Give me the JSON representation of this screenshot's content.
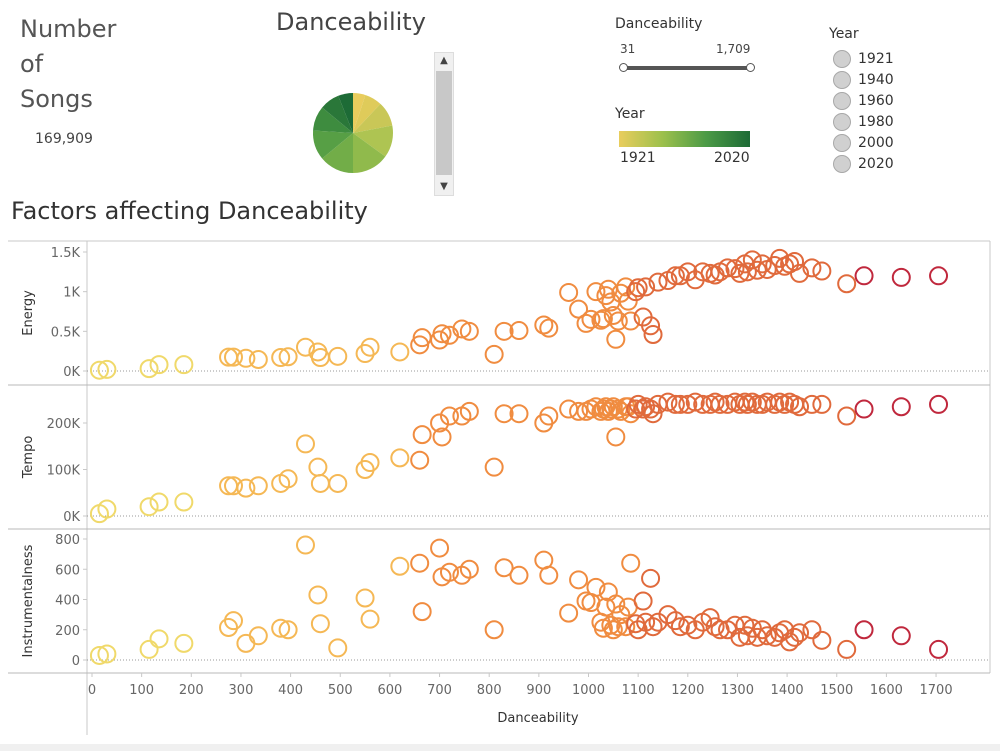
{
  "kpi": {
    "title": "Number of Songs",
    "value": "169,909"
  },
  "pie": {
    "title": "Danceability",
    "slices": [
      {
        "share": 0.05,
        "color": "#e9cd5d"
      },
      {
        "share": 0.07,
        "color": "#dfcb5a"
      },
      {
        "share": 0.1,
        "color": "#c9c757"
      },
      {
        "share": 0.13,
        "color": "#aec452"
      },
      {
        "share": 0.15,
        "color": "#90ba4c"
      },
      {
        "share": 0.14,
        "color": "#72ad48"
      },
      {
        "share": 0.12,
        "color": "#579f45"
      },
      {
        "share": 0.1,
        "color": "#3e8c3f"
      },
      {
        "share": 0.08,
        "color": "#2a7739"
      },
      {
        "share": 0.06,
        "color": "#1d6b36"
      }
    ]
  },
  "filters": {
    "danceability": {
      "label": "Danceability",
      "min": "31",
      "max": "1,709"
    },
    "year_legend": {
      "label": "Year",
      "min": "1921",
      "max": "2020",
      "colors": [
        "#e9cd5d",
        "#1d6b36"
      ]
    },
    "year_list": {
      "label": "Year",
      "options": [
        "1921",
        "1940",
        "1960",
        "1980",
        "2000",
        "2020"
      ]
    }
  },
  "chart_data": {
    "type": "scatter",
    "title": "Factors affecting Danceability",
    "xlabel": "Danceability",
    "xlim": [
      0,
      1750
    ],
    "xticks": [
      0,
      100,
      200,
      300,
      400,
      500,
      600,
      700,
      800,
      900,
      1000,
      1100,
      1200,
      1300,
      1400,
      1500,
      1600,
      1700
    ],
    "color_scale": [
      "#f0d96a",
      "#f5b855",
      "#f08c40",
      "#e06a3c",
      "#c0283d"
    ],
    "x": [
      15,
      30,
      115,
      135,
      185,
      275,
      285,
      310,
      335,
      380,
      395,
      430,
      455,
      460,
      495,
      550,
      560,
      620,
      660,
      665,
      700,
      705,
      720,
      745,
      760,
      810,
      830,
      860,
      910,
      920,
      960,
      980,
      995,
      1005,
      1015,
      1025,
      1030,
      1035,
      1040,
      1045,
      1050,
      1055,
      1060,
      1065,
      1075,
      1080,
      1085,
      1095,
      1100,
      1110,
      1115,
      1125,
      1130,
      1140,
      1160,
      1175,
      1185,
      1200,
      1215,
      1230,
      1245,
      1255,
      1265,
      1280,
      1295,
      1305,
      1315,
      1320,
      1330,
      1340,
      1350,
      1360,
      1375,
      1385,
      1395,
      1405,
      1415,
      1425,
      1450,
      1470,
      1520,
      1555,
      1630,
      1705
    ],
    "panels": [
      {
        "ylabel": "Energy",
        "ylim": [
          0,
          1600
        ],
        "ytick_values": [
          0,
          500,
          1000,
          1500
        ],
        "ytick_labels": [
          "0K",
          "0.5K",
          "1K",
          "1.5K"
        ],
        "y": [
          10,
          20,
          30,
          80,
          80,
          175,
          175,
          160,
          145,
          170,
          180,
          300,
          240,
          170,
          185,
          220,
          300,
          240,
          330,
          420,
          390,
          470,
          450,
          530,
          500,
          210,
          500,
          510,
          580,
          540,
          990,
          780,
          600,
          650,
          1000,
          640,
          660,
          950,
          1030,
          870,
          700,
          400,
          630,
          980,
          1060,
          880,
          630,
          1000,
          1050,
          680,
          1060,
          570,
          460,
          1120,
          1140,
          1200,
          1200,
          1250,
          1150,
          1250,
          1230,
          1210,
          1250,
          1300,
          1290,
          1230,
          1350,
          1250,
          1400,
          1270,
          1350,
          1280,
          1330,
          1420,
          1320,
          1350,
          1380,
          1230,
          1300,
          1260,
          1100,
          1200,
          1180,
          1200
        ]
      },
      {
        "ylabel": "Tempo",
        "ylim": [
          0,
          260000
        ],
        "ytick_values": [
          0,
          100000,
          200000
        ],
        "ytick_labels": [
          "0K",
          "100K",
          "200K"
        ],
        "y": [
          5000,
          15000,
          20000,
          30000,
          30000,
          65000,
          65000,
          60000,
          65000,
          70000,
          80000,
          155000,
          105000,
          70000,
          70000,
          100000,
          115000,
          125000,
          120000,
          175000,
          200000,
          170000,
          215000,
          215000,
          225000,
          105000,
          220000,
          220000,
          200000,
          215000,
          230000,
          225000,
          225000,
          230000,
          235000,
          225000,
          230000,
          235000,
          225000,
          230000,
          235000,
          170000,
          230000,
          225000,
          235000,
          235000,
          220000,
          230000,
          240000,
          230000,
          235000,
          230000,
          220000,
          240000,
          245000,
          240000,
          240000,
          240000,
          245000,
          240000,
          240000,
          245000,
          240000,
          240000,
          245000,
          240000,
          245000,
          240000,
          245000,
          240000,
          240000,
          245000,
          240000,
          245000,
          240000,
          245000,
          240000,
          235000,
          240000,
          240000,
          215000,
          230000,
          235000,
          240000
        ]
      },
      {
        "ylabel": "Instrumentalness",
        "ylim": [
          -10,
          840
        ],
        "ytick_values": [
          0,
          200,
          400,
          600,
          800
        ],
        "ytick_labels": [
          "0",
          "200",
          "400",
          "600",
          "800"
        ],
        "y": [
          30,
          40,
          70,
          140,
          110,
          215,
          260,
          110,
          160,
          210,
          200,
          760,
          430,
          240,
          80,
          410,
          270,
          620,
          640,
          320,
          740,
          550,
          580,
          560,
          600,
          200,
          610,
          560,
          660,
          560,
          310,
          530,
          390,
          380,
          480,
          250,
          210,
          350,
          450,
          230,
          200,
          370,
          220,
          300,
          220,
          350,
          640,
          240,
          200,
          390,
          250,
          540,
          220,
          250,
          300,
          260,
          220,
          230,
          200,
          250,
          280,
          220,
          200,
          200,
          230,
          150,
          230,
          160,
          210,
          150,
          200,
          160,
          150,
          180,
          200,
          120,
          150,
          180,
          200,
          130,
          70,
          200,
          160,
          70
        ]
      }
    ]
  }
}
